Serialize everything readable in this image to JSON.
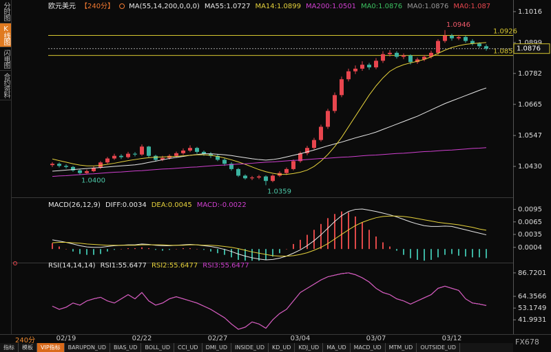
{
  "sidebar": [
    "分时图",
    "K线图",
    "闪电图",
    "合约资料"
  ],
  "period": "240分",
  "brand": "FX678",
  "toolbar": [
    "指标",
    "模板",
    "VIP指标",
    "BARUPDN_UD",
    "BIAS_UD",
    "BOLL_UD",
    "CCI_UD",
    "DMI_UD",
    "INSIDE_UD",
    "KD_UD",
    "KDJ_UD",
    "MA_UD",
    "MACD_UD",
    "MTM_UD",
    "OUTSIDE_UD"
  ],
  "chart_data": [
    {
      "type": "candlestick",
      "title": "欧元美元",
      "subtitle": "【240分】",
      "indicator": "MA(55,14,200,0,0,0)",
      "up_color": "#e8464e",
      "down_color": "#3bb3a0",
      "categories": [
        null,
        null,
        "02/19",
        null,
        null,
        null,
        null,
        null,
        null,
        null,
        null,
        null,
        null,
        "02/22",
        null,
        null,
        null,
        null,
        null,
        null,
        null,
        null,
        null,
        null,
        "02/27",
        null,
        null,
        null,
        null,
        null,
        null,
        null,
        null,
        null,
        null,
        null,
        "03/04",
        null,
        null,
        null,
        null,
        null,
        null,
        null,
        null,
        null,
        null,
        "03/07",
        null,
        null,
        null,
        null,
        null,
        null,
        null,
        null,
        null,
        null,
        "03/12",
        null,
        null,
        null,
        null,
        null
      ],
      "open": [
        1.0435,
        1.044,
        1.0432,
        1.0428,
        1.0415,
        1.0405,
        1.0412,
        1.0425,
        1.0445,
        1.046,
        1.047,
        1.0465,
        1.0478,
        1.0475,
        1.0505,
        1.047,
        1.0455,
        1.0462,
        1.047,
        1.048,
        1.049,
        1.05,
        1.0485,
        1.0478,
        1.047,
        1.0455,
        1.044,
        1.042,
        1.0395,
        1.0385,
        1.0388,
        1.0392,
        1.0375,
        1.0395,
        1.0405,
        1.042,
        1.045,
        1.048,
        1.05,
        1.053,
        1.058,
        1.064,
        1.07,
        1.076,
        1.079,
        1.08,
        1.0815,
        1.0805,
        1.083,
        1.0855,
        1.086,
        1.0845,
        1.085,
        1.0825,
        1.0835,
        1.0845,
        1.086,
        1.0905,
        1.0925,
        1.0915,
        1.092,
        1.0905,
        1.0895,
        1.0885
      ],
      "high": [
        1.0446,
        1.0445,
        1.0438,
        1.0432,
        1.042,
        1.0418,
        1.043,
        1.045,
        1.0466,
        1.0478,
        1.0476,
        1.0485,
        1.0484,
        1.0513,
        1.0508,
        1.0474,
        1.047,
        1.0476,
        1.0486,
        1.0498,
        1.051,
        1.0504,
        1.049,
        1.0484,
        1.0476,
        1.046,
        1.0446,
        1.0424,
        1.04,
        1.0394,
        1.0398,
        1.0396,
        1.04,
        1.0412,
        1.0426,
        1.0456,
        1.0486,
        1.0508,
        1.0538,
        1.0588,
        1.0648,
        1.071,
        1.077,
        1.08,
        1.0812,
        1.0828,
        1.0822,
        1.084,
        1.0866,
        1.087,
        1.0866,
        1.0858,
        1.0854,
        1.0842,
        1.0852,
        1.0868,
        1.0912,
        1.0946,
        1.0932,
        1.0928,
        1.0925,
        1.0912,
        1.09,
        1.0892
      ],
      "low": [
        1.0428,
        1.0426,
        1.0422,
        1.041,
        1.04,
        1.0401,
        1.0408,
        1.042,
        1.044,
        1.0455,
        1.0458,
        1.046,
        1.0468,
        1.047,
        1.0464,
        1.0448,
        1.045,
        1.0456,
        1.0465,
        1.0474,
        1.0484,
        1.0478,
        1.047,
        1.0462,
        1.045,
        1.0432,
        1.0414,
        1.039,
        1.038,
        1.0378,
        1.0382,
        1.0359,
        1.037,
        1.039,
        1.0398,
        1.0415,
        1.0444,
        1.0472,
        1.0494,
        1.0524,
        1.0572,
        1.0632,
        1.0692,
        1.0752,
        1.078,
        1.0792,
        1.0796,
        1.0798,
        1.0822,
        1.0846,
        1.0838,
        1.0836,
        1.0816,
        1.0818,
        1.0828,
        1.0838,
        1.0852,
        1.0898,
        1.0906,
        1.0908,
        1.0898,
        1.0888,
        1.0878,
        1.0868
      ],
      "close": [
        1.044,
        1.0432,
        1.0428,
        1.0415,
        1.0405,
        1.0412,
        1.0425,
        1.0445,
        1.046,
        1.047,
        1.0465,
        1.0478,
        1.0475,
        1.0505,
        1.047,
        1.0455,
        1.0462,
        1.047,
        1.048,
        1.049,
        1.05,
        1.0485,
        1.0478,
        1.047,
        1.0455,
        1.044,
        1.042,
        1.0395,
        1.0385,
        1.0388,
        1.0392,
        1.0375,
        1.0395,
        1.0405,
        1.042,
        1.045,
        1.048,
        1.05,
        1.053,
        1.058,
        1.064,
        1.07,
        1.076,
        1.079,
        1.08,
        1.0815,
        1.0805,
        1.083,
        1.0855,
        1.086,
        1.0845,
        1.085,
        1.0825,
        1.0835,
        1.0845,
        1.086,
        1.0905,
        1.0925,
        1.0915,
        1.092,
        1.0905,
        1.0895,
        1.0885,
        1.0876
      ],
      "series": [
        {
          "name": "MA55:1.0727",
          "color": "#e8e8e8",
          "values": [
            1.0412,
            1.0414,
            1.0416,
            1.0418,
            1.042,
            1.0422,
            1.0424,
            1.0426,
            1.0428,
            1.043,
            1.0432,
            1.0434,
            1.0436,
            1.044,
            1.0445,
            1.045,
            1.0455,
            1.046,
            1.0464,
            1.0468,
            1.0472,
            1.0475,
            1.0478,
            1.0478,
            1.0476,
            1.0474,
            1.0471,
            1.0467,
            1.0463,
            1.0459,
            1.0456,
            1.0454,
            1.0456,
            1.046,
            1.0466,
            1.0472,
            1.0478,
            1.0485,
            1.0492,
            1.05,
            1.0508,
            1.0515,
            1.0522,
            1.053,
            1.0538,
            1.0545,
            1.0552,
            1.056,
            1.057,
            1.058,
            1.059,
            1.06,
            1.061,
            1.062,
            1.0632,
            1.0644,
            1.0656,
            1.0668,
            1.0678,
            1.0688,
            1.0698,
            1.0708,
            1.0718,
            1.0727
          ]
        },
        {
          "name": "MA14:1.0899",
          "color": "#e6d23c",
          "values": [
            1.0458,
            1.0452,
            1.0446,
            1.044,
            1.0435,
            1.0432,
            1.0432,
            1.0434,
            1.0438,
            1.0442,
            1.0447,
            1.0452,
            1.0456,
            1.046,
            1.0463,
            1.0465,
            1.0466,
            1.0467,
            1.0468,
            1.047,
            1.0472,
            1.0474,
            1.0474,
            1.0472,
            1.0468,
            1.0462,
            1.0455,
            1.0447,
            1.0438,
            1.0428,
            1.0418,
            1.041,
            1.0404,
            1.04,
            1.04,
            1.0403,
            1.0408,
            1.0416,
            1.043,
            1.045,
            1.0475,
            1.0505,
            1.054,
            1.058,
            1.062,
            1.066,
            1.07,
            1.0735,
            1.0765,
            1.079,
            1.0805,
            1.0815,
            1.0822,
            1.0828,
            1.0835,
            1.0845,
            1.0858,
            1.087,
            1.088,
            1.0887,
            1.0892,
            1.0895,
            1.0897,
            1.0899
          ]
        },
        {
          "name": "MA200:1.0501",
          "color": "#d040d0",
          "values": [
            1.0392,
            1.0394,
            1.0395,
            1.0397,
            1.0399,
            1.0401,
            1.0402,
            1.0404,
            1.0406,
            1.0408,
            1.0409,
            1.0411,
            1.0413,
            1.0414,
            1.0416,
            1.0418,
            1.042,
            1.0421,
            1.0423,
            1.0425,
            1.0427,
            1.0428,
            1.043,
            1.0432,
            1.0434,
            1.0435,
            1.0437,
            1.0439,
            1.044,
            1.0442,
            1.0444,
            1.0446,
            1.0447,
            1.0449,
            1.0451,
            1.0453,
            1.0454,
            1.0456,
            1.0458,
            1.046,
            1.0461,
            1.0463,
            1.0465,
            1.0466,
            1.0468,
            1.047,
            1.0472,
            1.0473,
            1.0475,
            1.0477,
            1.0479,
            1.048,
            1.0482,
            1.0484,
            1.0486,
            1.0487,
            1.0489,
            1.0491,
            1.0492,
            1.0494,
            1.0496,
            1.0498,
            1.0499,
            1.0501
          ]
        }
      ],
      "legend_extra": [
        {
          "name": "MA0:1.0876",
          "color": "#3cc060"
        },
        {
          "name": "MA0:1.0876",
          "color": "#9a9a9a"
        },
        {
          "name": "MA0:1.087",
          "color": "#e8464e"
        }
      ],
      "hlines": [
        {
          "value": 1.0926,
          "color": "#d8c830"
        },
        {
          "value": 1.085,
          "label": "1.0850",
          "color": "#d8c830"
        }
      ],
      "annotations": [
        {
          "of": "high",
          "at": 57,
          "label": "1.0946",
          "color": "#f05a6a"
        },
        {
          "of": "low",
          "at": 4,
          "label": "1.0400",
          "color": "#4cc8a8"
        },
        {
          "of": "low",
          "at": 31,
          "label": "1.0359",
          "color": "#4cc8a8"
        }
      ],
      "ylim": [
        1.0313,
        1.1047
      ],
      "yticks": [
        1.1016,
        1.0899,
        1.0782,
        1.0665,
        1.0547,
        {
          "value": 1.043,
          "label": "1.0430"
        }
      ]
    },
    {
      "type": "macd",
      "title": "MACD(26,12,9)",
      "up_color": "#e04848",
      "down_color": "#3bb3a0",
      "series": [
        {
          "name": "DIFF:0.0034",
          "color": "#e8e8e8",
          "style": "line",
          "values": [
            0.0022,
            0.0019,
            0.0016,
            0.0012,
            0.0008,
            0.0005,
            0.0004,
            0.0004,
            0.0006,
            0.0008,
            0.0009,
            0.001,
            0.001,
            0.0012,
            0.0011,
            0.0009,
            0.0008,
            0.0008,
            0.0009,
            0.001,
            0.0011,
            0.001,
            0.0008,
            0.0006,
            0.0003,
            -0.0001,
            -0.0006,
            -0.0012,
            -0.0017,
            -0.0021,
            -0.0024,
            -0.0026,
            -0.0025,
            -0.0022,
            -0.0017,
            -0.001,
            -0.0002,
            0.0008,
            0.002,
            0.0034,
            0.005,
            0.0066,
            0.008,
            0.009,
            0.0095,
            0.0096,
            0.0093,
            0.009,
            0.0086,
            0.0082,
            0.0077,
            0.0071,
            0.0065,
            0.006,
            0.0056,
            0.0054,
            0.0054,
            0.0055,
            0.0054,
            0.005,
            0.0046,
            0.0042,
            0.0038,
            0.0034
          ]
        },
        {
          "name": "DEA:0.0045",
          "color": "#e6d23c",
          "style": "line",
          "values": [
            0.0015,
            0.0016,
            0.0016,
            0.0015,
            0.0014,
            0.0012,
            0.0011,
            0.001,
            0.0009,
            0.0009,
            0.0009,
            0.0009,
            0.0009,
            0.001,
            0.001,
            0.001,
            0.001,
            0.0009,
            0.0009,
            0.0009,
            0.001,
            0.001,
            0.0009,
            0.0009,
            0.0008,
            0.0006,
            0.0004,
            0.0001,
            -0.0003,
            -0.0007,
            -0.001,
            -0.0013,
            -0.0016,
            -0.0017,
            -0.0017,
            -0.0016,
            -0.0013,
            -0.0009,
            -0.0003,
            0.0004,
            0.0013,
            0.0024,
            0.0035,
            0.0046,
            0.0056,
            0.0064,
            0.007,
            0.0075,
            0.0078,
            0.0079,
            0.0079,
            0.0078,
            0.0076,
            0.0073,
            0.007,
            0.0067,
            0.0064,
            0.0062,
            0.006,
            0.0058,
            0.0055,
            0.0052,
            0.0048,
            0.0045
          ]
        },
        {
          "name": "MACD:-0.0022",
          "color": "#d040d0",
          "style": "bar",
          "values": [
            0.0014,
            0.0006,
            0,
            -0.0006,
            -0.0012,
            -0.0014,
            -0.0014,
            -0.0012,
            -0.0006,
            -0.0002,
            0,
            0.0002,
            0.0002,
            0.0004,
            0.0002,
            -0.0002,
            -0.0004,
            -0.0002,
            0,
            0.0002,
            0.0002,
            0,
            -0.0002,
            -0.0006,
            -0.001,
            -0.0014,
            -0.002,
            -0.0026,
            -0.0028,
            -0.0028,
            -0.0028,
            -0.0026,
            -0.0018,
            -0.001,
            0,
            0.0012,
            0.0022,
            0.0034,
            0.0046,
            0.006,
            0.0074,
            0.0084,
            0.009,
            0.0088,
            0.0078,
            0.0064,
            0.0046,
            0.003,
            0.0016,
            0.0006,
            -0.0004,
            -0.0014,
            -0.0022,
            -0.0026,
            -0.0028,
            -0.0026,
            -0.002,
            -0.0014,
            -0.0012,
            -0.0016,
            -0.0018,
            -0.002,
            -0.002,
            -0.0022
          ]
        }
      ],
      "ylim": [
        -0.0031,
        0.0119
      ],
      "yticks": [
        0.0095,
        0.0065,
        0.0035,
        0.0004
      ]
    },
    {
      "type": "line",
      "title": "RSI(14,14,14)",
      "series": [
        {
          "name": "RSI1:55.6477",
          "color": "#e8e8e8",
          "values": [
            55,
            52,
            54,
            58,
            56,
            60,
            62,
            63.5,
            60,
            58,
            62,
            66,
            62,
            68,
            60,
            56,
            58,
            62,
            64,
            62,
            60,
            58,
            55,
            52,
            48,
            44,
            38,
            33,
            35,
            40,
            38,
            34,
            42,
            48,
            52,
            60,
            68,
            72,
            76,
            80,
            83,
            84.5,
            86,
            86.7,
            85,
            82,
            78,
            72,
            68,
            66,
            62,
            60,
            57,
            60,
            63,
            66,
            72,
            74,
            72,
            70,
            62,
            58,
            57,
            55.6477
          ]
        },
        {
          "name": "RSI2:55.6477",
          "color": "#e6d23c",
          "values": [
            55,
            52,
            54,
            58,
            56,
            60,
            62,
            63.5,
            60,
            58,
            62,
            66,
            62,
            68,
            60,
            56,
            58,
            62,
            64,
            62,
            60,
            58,
            55,
            52,
            48,
            44,
            38,
            33,
            35,
            40,
            38,
            34,
            42,
            48,
            52,
            60,
            68,
            72,
            76,
            80,
            83,
            84.5,
            86,
            86.7,
            85,
            82,
            78,
            72,
            68,
            66,
            62,
            60,
            57,
            60,
            63,
            66,
            72,
            74,
            72,
            70,
            62,
            58,
            57,
            55.6477
          ]
        },
        {
          "name": "RSI3:55.6477",
          "color": "#d040d0",
          "values": [
            55,
            52,
            54,
            58,
            56,
            60,
            62,
            63.5,
            60,
            58,
            62,
            66,
            62,
            68,
            60,
            56,
            58,
            62,
            64,
            62,
            60,
            58,
            55,
            52,
            48,
            44,
            38,
            33,
            35,
            40,
            38,
            34,
            42,
            48,
            52,
            60,
            68,
            72,
            76,
            80,
            83,
            84.5,
            86,
            86.7,
            85,
            82,
            78,
            72,
            68,
            66,
            62,
            60,
            57,
            60,
            63,
            66,
            72,
            74,
            72,
            70,
            62,
            58,
            57,
            55.6477
          ]
        }
      ],
      "ylim": [
        29.03,
        93.85
      ],
      "yticks": [
        86.7201,
        64.3566,
        53.1749,
        41.9931
      ]
    }
  ]
}
